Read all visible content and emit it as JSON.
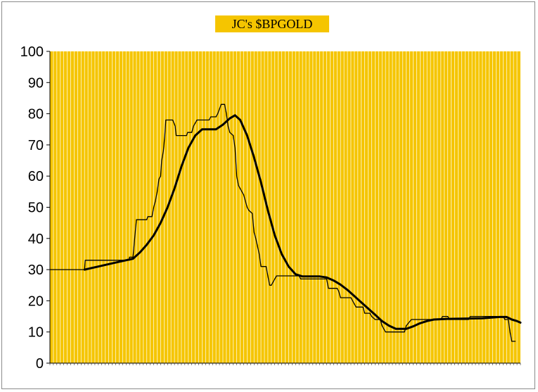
{
  "chart_data": {
    "type": "line",
    "title": "JC's $BPGOLD",
    "xlabel": "",
    "ylabel": "",
    "ylim": [
      0,
      100
    ],
    "yticks": [
      0,
      10,
      20,
      30,
      40,
      50,
      60,
      70,
      80,
      90,
      100
    ],
    "xticks_note": "dense date tick labels, illegible",
    "grid": "vertical lines at each x step",
    "legend": "none",
    "colors": {
      "plot_background": "#f5c500",
      "grid": "#ffffff",
      "series": "#000000",
      "title_background": "#f5c500"
    },
    "series": [
      {
        "style": "thin",
        "points": [
          [
            0,
            30
          ],
          [
            10,
            30
          ],
          [
            10.2,
            33
          ],
          [
            23,
            33
          ],
          [
            23,
            34
          ],
          [
            24,
            34
          ],
          [
            24.5,
            40
          ],
          [
            25,
            46
          ],
          [
            28,
            46
          ],
          [
            28.3,
            47
          ],
          [
            29.5,
            47
          ],
          [
            30,
            50
          ],
          [
            30.5,
            52
          ],
          [
            31,
            55
          ],
          [
            31.5,
            59
          ],
          [
            32,
            60
          ],
          [
            32.3,
            65
          ],
          [
            32.8,
            68
          ],
          [
            33.2,
            73
          ],
          [
            33.5,
            78
          ],
          [
            35.5,
            78
          ],
          [
            36.2,
            76
          ],
          [
            36.5,
            73
          ],
          [
            39.5,
            73
          ],
          [
            39.8,
            74
          ],
          [
            41,
            74
          ],
          [
            41.5,
            76
          ],
          [
            42.5,
            78
          ],
          [
            46,
            78
          ],
          [
            46.5,
            79
          ],
          [
            48,
            79
          ],
          [
            48.5,
            80
          ],
          [
            49.5,
            83
          ],
          [
            50.5,
            83
          ],
          [
            51,
            80
          ],
          [
            51.5,
            76
          ],
          [
            52,
            74
          ],
          [
            53,
            73
          ],
          [
            53.5,
            69
          ],
          [
            54,
            60
          ],
          [
            54.5,
            57
          ],
          [
            55.5,
            55
          ],
          [
            56,
            54
          ],
          [
            57,
            50
          ],
          [
            57.5,
            49
          ],
          [
            58.5,
            48
          ],
          [
            59,
            42
          ],
          [
            59.5,
            40
          ],
          [
            60.5,
            35
          ],
          [
            61,
            31
          ],
          [
            62.5,
            31
          ],
          [
            63,
            28
          ],
          [
            63.5,
            25
          ],
          [
            64,
            25
          ],
          [
            64.5,
            26
          ],
          [
            65.5,
            28
          ],
          [
            72,
            28
          ],
          [
            72.5,
            27
          ],
          [
            80,
            27
          ],
          [
            80.5,
            24
          ],
          [
            83,
            24
          ],
          [
            83.5,
            23
          ],
          [
            84,
            21
          ],
          [
            87,
            21
          ],
          [
            87.5,
            20
          ],
          [
            88.5,
            18
          ],
          [
            90.5,
            18
          ],
          [
            91,
            16
          ],
          [
            92.5,
            16
          ],
          [
            93,
            15
          ],
          [
            94,
            14
          ],
          [
            95.5,
            14
          ],
          [
            96,
            12
          ],
          [
            97,
            10
          ],
          [
            102.5,
            10
          ],
          [
            103,
            12
          ],
          [
            104.5,
            14
          ],
          [
            113,
            14
          ],
          [
            113.5,
            15
          ],
          [
            115,
            15
          ],
          [
            115.5,
            14
          ],
          [
            121,
            14
          ],
          [
            121.5,
            15
          ],
          [
            131,
            15
          ],
          [
            131.5,
            14
          ],
          [
            132.5,
            14
          ],
          [
            133,
            10
          ],
          [
            133.5,
            7
          ],
          [
            134.5,
            7
          ]
        ]
      },
      {
        "style": "thick",
        "points": [
          [
            10,
            30
          ],
          [
            14,
            31
          ],
          [
            18,
            32
          ],
          [
            22,
            33
          ],
          [
            24,
            33.5
          ],
          [
            26,
            35.5
          ],
          [
            28,
            38
          ],
          [
            30,
            41
          ],
          [
            32,
            45
          ],
          [
            34,
            50
          ],
          [
            36,
            56
          ],
          [
            38,
            63
          ],
          [
            40,
            69
          ],
          [
            42,
            73
          ],
          [
            44,
            75
          ],
          [
            46,
            75
          ],
          [
            48,
            75
          ],
          [
            50,
            76.5
          ],
          [
            52,
            78.5
          ],
          [
            53.5,
            79.5
          ],
          [
            55,
            78
          ],
          [
            57,
            73
          ],
          [
            59,
            66
          ],
          [
            61,
            58
          ],
          [
            63,
            49
          ],
          [
            65,
            41
          ],
          [
            67,
            35
          ],
          [
            69,
            31
          ],
          [
            71,
            28.5
          ],
          [
            73,
            27.8
          ],
          [
            78,
            27.8
          ],
          [
            80,
            27.5
          ],
          [
            82,
            26.5
          ],
          [
            84,
            25.2
          ],
          [
            86,
            23.5
          ],
          [
            88,
            21.5
          ],
          [
            90,
            19.5
          ],
          [
            92,
            17.5
          ],
          [
            94,
            15.5
          ],
          [
            96,
            13.5
          ],
          [
            98,
            12
          ],
          [
            100,
            11
          ],
          [
            103,
            11
          ],
          [
            105,
            11.8
          ],
          [
            107,
            12.8
          ],
          [
            109,
            13.5
          ],
          [
            111,
            14
          ],
          [
            115,
            14.2
          ],
          [
            125,
            14.4
          ],
          [
            130,
            14.8
          ],
          [
            132,
            14.8
          ],
          [
            133.5,
            14
          ],
          [
            135,
            13.5
          ],
          [
            136,
            13
          ]
        ]
      }
    ]
  }
}
